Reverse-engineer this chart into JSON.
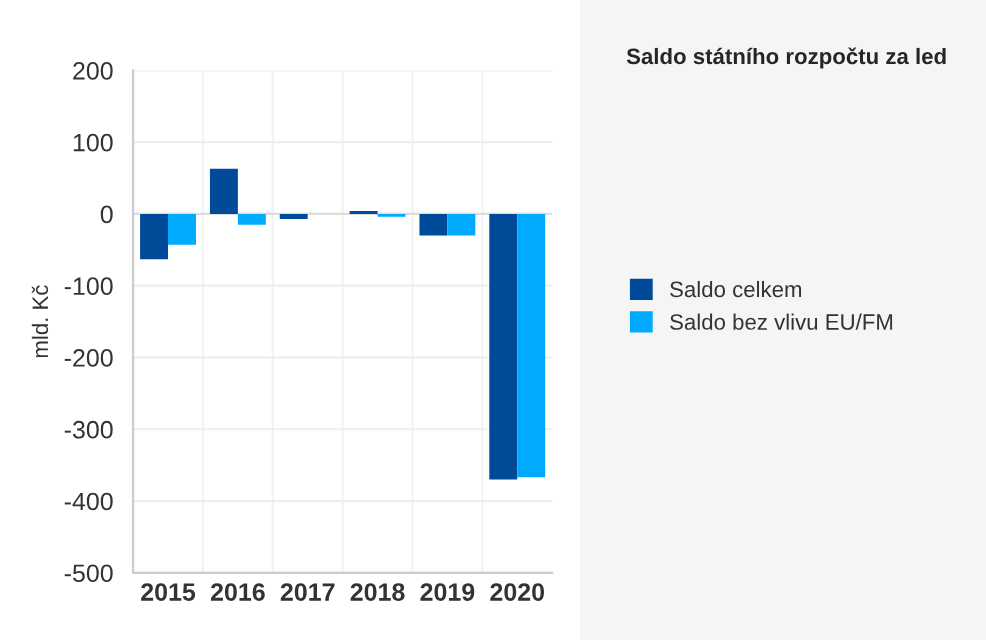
{
  "chart_data": {
    "type": "bar",
    "title": "Saldo státního rozpočtu za led",
    "ylabel": "mld. Kč",
    "categories": [
      "2015",
      "2016",
      "2017",
      "2018",
      "2019",
      "2020"
    ],
    "series": [
      {
        "name": "Saldo celkem",
        "color": "#004a9a",
        "values": [
          -63,
          63,
          -7,
          4,
          -30,
          -370
        ]
      },
      {
        "name": "Saldo bez vlivu EU/FM",
        "color": "#00aaff",
        "values": [
          -43,
          -15,
          null,
          -4,
          -30,
          -367
        ]
      }
    ],
    "ylim": [
      -500,
      200
    ],
    "yticks": [
      -500,
      -400,
      -300,
      -200,
      -100,
      0,
      100,
      200
    ],
    "grid": true,
    "legend": "right"
  }
}
